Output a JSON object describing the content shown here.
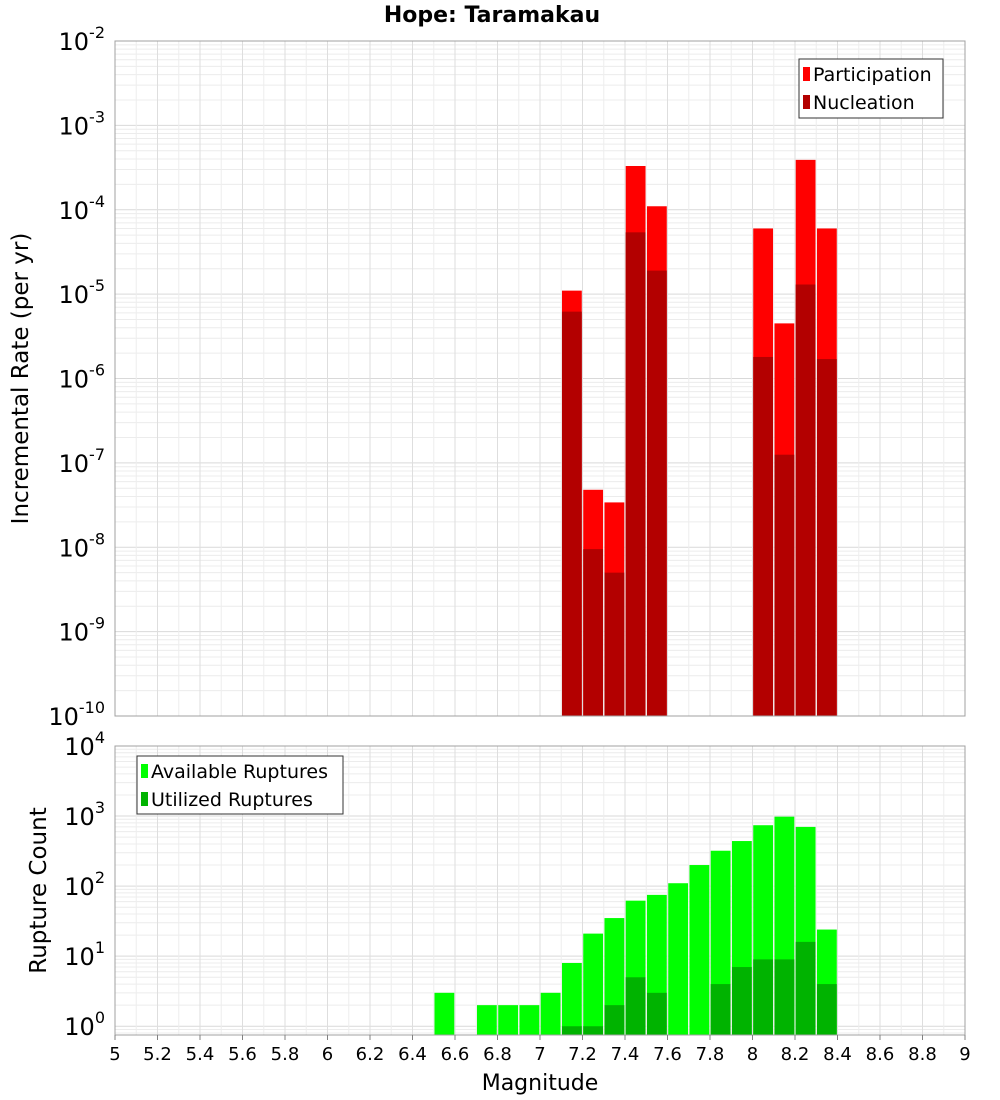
{
  "chart_data": {
    "title": "Hope: Taramakau",
    "xlabel": "Magnitude",
    "xlim": [
      5,
      9
    ],
    "x_ticks": [
      "5",
      "5.2",
      "5.4",
      "5.6",
      "5.8",
      "6",
      "6.2",
      "6.4",
      "6.6",
      "6.8",
      "7",
      "7.2",
      "7.4",
      "7.6",
      "7.8",
      "8",
      "8.2",
      "8.4",
      "8.6",
      "8.8",
      "9"
    ],
    "panels": [
      {
        "type": "bar",
        "ylabel": "Incremental Rate (per yr)",
        "yscale": "log",
        "ylim": [
          1e-10,
          0.01
        ],
        "y_tick_exponents": [
          "-10",
          "-9",
          "-8",
          "-7",
          "-6",
          "-5",
          "-4",
          "-3",
          "-2"
        ],
        "grid": true,
        "legend_position": "top-right",
        "series": [
          {
            "name": "Participation",
            "color": "#ff0000",
            "x": [
              7.15,
              7.25,
              7.35,
              7.45,
              7.55,
              8.05,
              8.15,
              8.25,
              8.35
            ],
            "values": [
              1.1e-05,
              4.8e-08,
              3.4e-08,
              0.00033,
              0.00011,
              6e-05,
              4.5e-06,
              0.00039,
              6e-05
            ]
          },
          {
            "name": "Nucleation",
            "color": "#b30000",
            "x": [
              7.15,
              7.25,
              7.35,
              7.45,
              7.55,
              8.05,
              8.15,
              8.25,
              8.35
            ],
            "values": [
              6.2e-06,
              9.5e-09,
              5e-09,
              5.4e-05,
              1.9e-05,
              1.8e-06,
              1.25e-07,
              1.3e-05,
              1.7e-06
            ]
          }
        ]
      },
      {
        "type": "bar",
        "ylabel": "Rupture Count",
        "yscale": "log",
        "ylim": [
          0.75,
          10000
        ],
        "y_tick_exponents": [
          "0",
          "1",
          "2",
          "3",
          "4"
        ],
        "grid": true,
        "legend_position": "top-left",
        "series": [
          {
            "name": "Available Ruptures",
            "color": "#00ff00",
            "x": [
              6.55,
              6.75,
              6.85,
              6.95,
              7.05,
              7.15,
              7.25,
              7.35,
              7.45,
              7.55,
              7.65,
              7.75,
              7.85,
              7.95,
              8.05,
              8.15,
              8.25,
              8.35
            ],
            "values": [
              3,
              2,
              2,
              2,
              3,
              8,
              21,
              35,
              62,
              75,
              110,
              200,
              320,
              440,
              740,
              980,
              700,
              24
            ]
          },
          {
            "name": "Utilized Ruptures",
            "color": "#00b300",
            "x": [
              7.15,
              7.25,
              7.35,
              7.45,
              7.55,
              7.85,
              7.95,
              8.05,
              8.15,
              8.25,
              8.35
            ],
            "values": [
              1,
              1,
              2,
              5,
              3,
              4,
              7,
              9,
              9,
              16,
              4
            ]
          }
        ]
      }
    ]
  }
}
